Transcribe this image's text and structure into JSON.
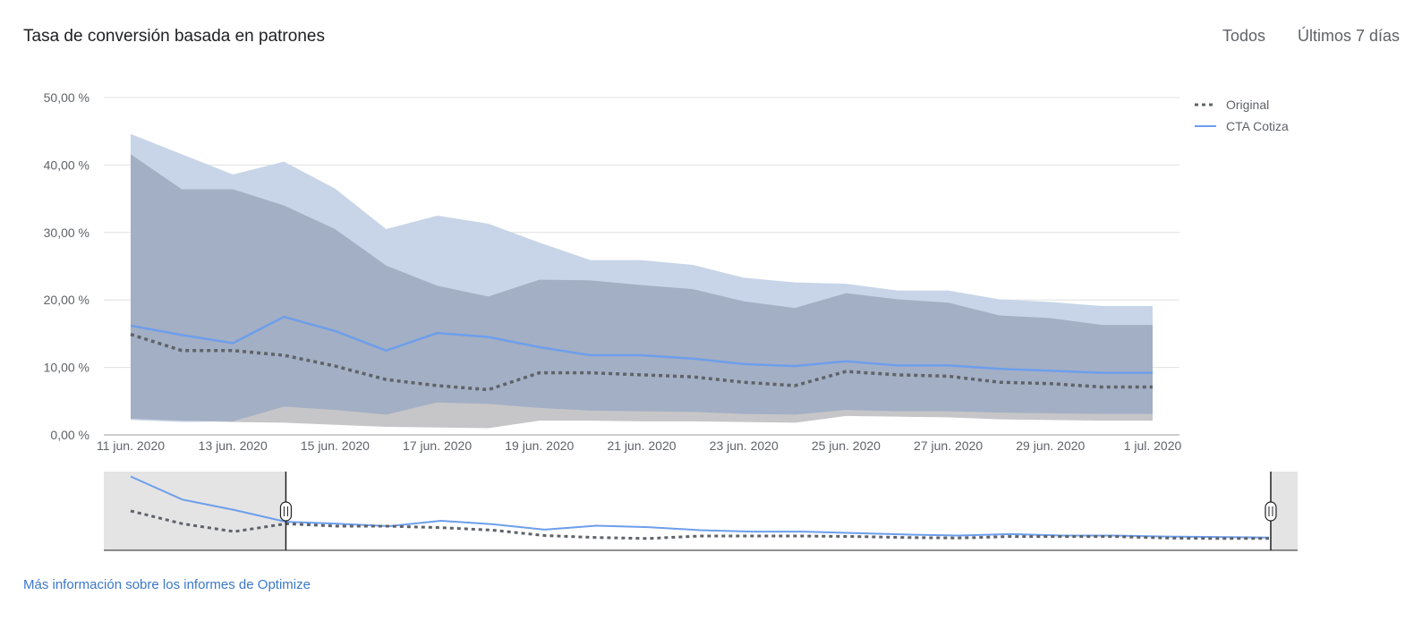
{
  "header": {
    "title": "Tasa de conversión basada en patrones",
    "range_all": "Todos",
    "range_7d": "Últimos 7 días"
  },
  "footer": {
    "link": "Más información sobre los informes de Optimize"
  },
  "colors": {
    "original_line": "#5f6368",
    "original_band": "#c6c6c8",
    "variant_line": "#6d9eeb",
    "variant_band": "#c8d5e8",
    "overlap_band": "#a3afc4",
    "grid": "#e0e0e0",
    "nav_bg": "#e4e4e4"
  },
  "chart_data": {
    "type": "line",
    "title": "Tasa de conversión basada en patrones",
    "xlabel": "",
    "ylabel": "",
    "ylim": [
      0,
      50
    ],
    "yticks": [
      "0,00 %",
      "10,00 %",
      "20,00 %",
      "30,00 %",
      "40,00 %",
      "50,00 %"
    ],
    "y_tick_values": [
      0,
      10,
      20,
      30,
      40,
      50
    ],
    "xticks": [
      "11 jun. 2020",
      "13 jun. 2020",
      "15 jun. 2020",
      "17 jun. 2020",
      "19 jun. 2020",
      "21 jun. 2020",
      "23 jun. 2020",
      "25 jun. 2020",
      "27 jun. 2020",
      "29 jun. 2020",
      "1 jul. 2020"
    ],
    "x": [
      "11 jun. 2020",
      "12 jun. 2020",
      "13 jun. 2020",
      "14 jun. 2020",
      "15 jun. 2020",
      "16 jun. 2020",
      "17 jun. 2020",
      "18 jun. 2020",
      "19 jun. 2020",
      "20 jun. 2020",
      "21 jun. 2020",
      "22 jun. 2020",
      "23 jun. 2020",
      "24 jun. 2020",
      "25 jun. 2020",
      "26 jun. 2020",
      "27 jun. 2020",
      "28 jun. 2020",
      "29 jun. 2020",
      "30 jun. 2020",
      "1 jul. 2020"
    ],
    "legend_position": "top-right",
    "grid": true,
    "series": [
      {
        "name": "Original",
        "style": "dotted",
        "color": "#5f6368",
        "values": [
          14.9,
          12.5,
          12.5,
          11.8,
          10.2,
          8.2,
          7.3,
          6.7,
          9.2,
          9.2,
          8.9,
          8.6,
          7.8,
          7.3,
          9.4,
          8.9,
          8.7,
          7.8,
          7.6,
          7.1,
          7.1
        ],
        "lower": [
          2.4,
          2.1,
          1.9,
          1.8,
          1.5,
          1.2,
          1.1,
          1.0,
          2.1,
          2.1,
          2.0,
          2.0,
          1.9,
          1.8,
          2.8,
          2.7,
          2.6,
          2.3,
          2.2,
          2.1,
          2.1
        ],
        "upper": [
          41.6,
          36.4,
          36.4,
          34.0,
          30.5,
          25.1,
          22.1,
          20.5,
          23.0,
          22.9,
          22.2,
          21.6,
          19.8,
          18.8,
          21.0,
          20.1,
          19.6,
          17.7,
          17.3,
          16.3,
          16.3
        ]
      },
      {
        "name": "CTA Cotiza",
        "style": "solid",
        "color": "#6d9eeb",
        "values": [
          16.2,
          14.8,
          13.6,
          17.5,
          15.4,
          12.5,
          15.1,
          14.5,
          13.0,
          11.8,
          11.8,
          11.3,
          10.5,
          10.2,
          10.9,
          10.3,
          10.3,
          9.8,
          9.5,
          9.2,
          9.2
        ],
        "lower": [
          2.2,
          1.9,
          2.0,
          4.2,
          3.7,
          3.0,
          4.8,
          4.6,
          4.0,
          3.6,
          3.5,
          3.4,
          3.1,
          3.0,
          3.7,
          3.5,
          3.5,
          3.3,
          3.2,
          3.1,
          3.1
        ],
        "upper": [
          44.6,
          41.6,
          38.6,
          40.5,
          36.5,
          30.5,
          32.5,
          31.3,
          28.5,
          25.9,
          25.9,
          25.2,
          23.3,
          22.6,
          22.4,
          21.4,
          21.4,
          20.1,
          19.7,
          19.1,
          19.1
        ]
      }
    ],
    "navigator": {
      "original_values": [
        18.0,
        15.4,
        13.8,
        15.4,
        14.9,
        14.9,
        14.6,
        14.1,
        13.0,
        12.6,
        12.4,
        12.9,
        12.9,
        12.9,
        12.8,
        12.6,
        12.5,
        12.8,
        12.8,
        12.8,
        12.5,
        12.4,
        12.4
      ],
      "variant_values": [
        25.0,
        20.3,
        18.2,
        15.8,
        15.4,
        14.9,
        16.0,
        15.3,
        14.2,
        15.0,
        14.7,
        14.1,
        13.8,
        13.8,
        13.5,
        13.2,
        13.0,
        13.3,
        13.0,
        13.0,
        12.8,
        12.7,
        12.6
      ],
      "selection_start_index": 3,
      "selection_end_index": 24
    }
  }
}
